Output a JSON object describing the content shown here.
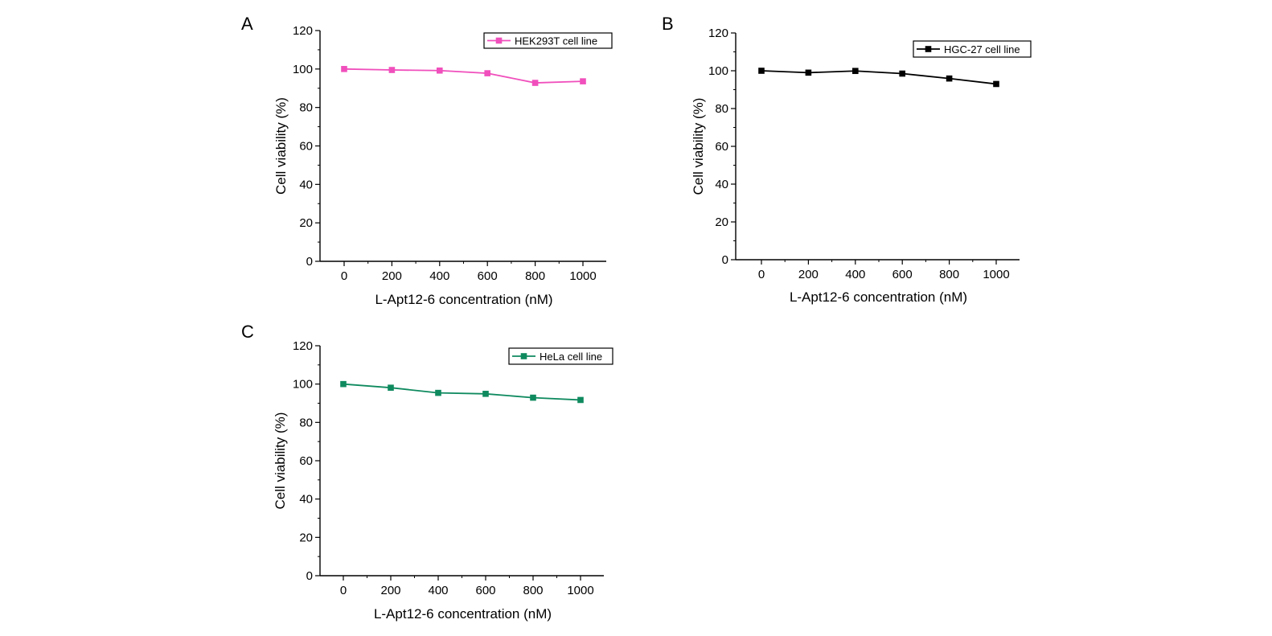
{
  "chart_data": [
    {
      "panel": "A",
      "type": "line",
      "xlabel": "L-Apt12-6 concentration (nM)",
      "ylabel": "Cell viability (%)",
      "x": [
        0,
        200,
        400,
        600,
        800,
        1000
      ],
      "xticks": [
        "0",
        "200",
        "400",
        "600",
        "800",
        "1000"
      ],
      "yticks": [
        "0",
        "20",
        "40",
        "60",
        "80",
        "100",
        "120"
      ],
      "ylim": [
        0,
        120
      ],
      "series": [
        {
          "name": "HEK293T cell line",
          "color": "#f04fbc",
          "values": [
            100,
            99.5,
            99.2,
            97.8,
            92.8,
            93.6
          ]
        }
      ],
      "legend": "top-right"
    },
    {
      "panel": "B",
      "type": "line",
      "xlabel": "L-Apt12-6 concentration (nM)",
      "ylabel": "Cell viability (%)",
      "x": [
        0,
        200,
        400,
        600,
        800,
        1000
      ],
      "xticks": [
        "0",
        "200",
        "400",
        "600",
        "800",
        "1000"
      ],
      "yticks": [
        "0",
        "20",
        "40",
        "60",
        "80",
        "100",
        "120"
      ],
      "ylim": [
        0,
        120
      ],
      "series": [
        {
          "name": "HGC-27 cell line",
          "color": "#000000",
          "values": [
            100,
            99,
            99.9,
            98.5,
            95.9,
            93
          ]
        }
      ],
      "legend": "top-right"
    },
    {
      "panel": "C",
      "type": "line",
      "xlabel": "L-Apt12-6 concentration (nM)",
      "ylabel": "Cell viability (%)",
      "x": [
        0,
        200,
        400,
        600,
        800,
        1000
      ],
      "xticks": [
        "0",
        "200",
        "400",
        "600",
        "800",
        "1000"
      ],
      "yticks": [
        "0",
        "20",
        "40",
        "60",
        "80",
        "100",
        "120"
      ],
      "ylim": [
        0,
        120
      ],
      "series": [
        {
          "name": "HeLa cell line",
          "color": "#0f8a5f",
          "values": [
            100,
            98.1,
            95.4,
            94.9,
            92.9,
            91.7
          ]
        }
      ],
      "legend": "top-right"
    }
  ]
}
